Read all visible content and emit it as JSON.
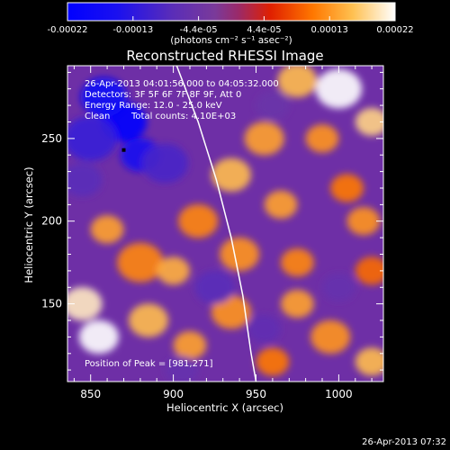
{
  "chart_data": {
    "type": "heatmap",
    "title": "Reconstructed RHESSI Image",
    "xlabel": "Heliocentric X (arcsec)",
    "ylabel": "Heliocentric Y (arcsec)",
    "xlim": [
      836,
      1027
    ],
    "ylim": [
      103,
      294
    ],
    "x_ticks": [
      850,
      900,
      950,
      1000
    ],
    "y_ticks": [
      150,
      200,
      250
    ],
    "colorbar": {
      "tick_labels": [
        "-0.00022",
        "-0.00013",
        "-4.4e-05",
        "4.4e-05",
        "0.00013",
        "0.00022"
      ],
      "units_label": "(photons cm⁻² s⁻¹ asec⁻²)",
      "range": [
        -0.00022,
        0.00022
      ]
    },
    "annotations": [
      "26-Apr-2013 04:01:56.000 to 04:05:32.000",
      "Detectors: 3F 5F 6F 7F 8F 9F, Att 0",
      "Energy Range: 12.0 - 25.0 keV",
      "Clean",
      "Total counts: 4.10E+03"
    ],
    "peak_label": "Position of Peak = [981,271]",
    "peak": [
      981,
      271
    ],
    "min_marker": [
      870,
      243
    ],
    "limb_points": [
      [
        902,
        294
      ],
      [
        915,
        260
      ],
      [
        926,
        225
      ],
      [
        935,
        190
      ],
      [
        942,
        155
      ],
      [
        947,
        120
      ],
      [
        950,
        103
      ]
    ],
    "blobs": [
      {
        "x": 870,
        "y": 260,
        "v": -0.00022,
        "s": 14
      },
      {
        "x": 858,
        "y": 275,
        "v": -0.00018,
        "s": 14
      },
      {
        "x": 880,
        "y": 240,
        "v": -0.00016,
        "s": 12
      },
      {
        "x": 850,
        "y": 250,
        "v": -0.00012,
        "s": 16
      },
      {
        "x": 895,
        "y": 235,
        "v": -0.0001,
        "s": 14
      },
      {
        "x": 845,
        "y": 225,
        "v": -8e-05,
        "s": 12
      },
      {
        "x": 1000,
        "y": 280,
        "v": 0.00022,
        "s": 14
      },
      {
        "x": 1020,
        "y": 260,
        "v": 0.00018,
        "s": 10
      },
      {
        "x": 975,
        "y": 285,
        "v": 0.00016,
        "s": 12
      },
      {
        "x": 990,
        "y": 250,
        "v": 0.00013,
        "s": 10
      },
      {
        "x": 955,
        "y": 250,
        "v": 0.00014,
        "s": 12
      },
      {
        "x": 935,
        "y": 228,
        "v": 0.00016,
        "s": 12
      },
      {
        "x": 965,
        "y": 210,
        "v": 0.00014,
        "s": 10
      },
      {
        "x": 915,
        "y": 200,
        "v": 0.00012,
        "s": 12
      },
      {
        "x": 1015,
        "y": 200,
        "v": 0.00013,
        "s": 10
      },
      {
        "x": 1005,
        "y": 220,
        "v": 0.00011,
        "s": 10
      },
      {
        "x": 880,
        "y": 175,
        "v": 0.00012,
        "s": 14
      },
      {
        "x": 860,
        "y": 195,
        "v": 0.00014,
        "s": 10
      },
      {
        "x": 900,
        "y": 170,
        "v": 0.00015,
        "s": 10
      },
      {
        "x": 940,
        "y": 180,
        "v": 0.00013,
        "s": 12
      },
      {
        "x": 975,
        "y": 175,
        "v": 0.00012,
        "s": 10
      },
      {
        "x": 1020,
        "y": 170,
        "v": 0.0001,
        "s": 10
      },
      {
        "x": 845,
        "y": 150,
        "v": 0.0002,
        "s": 12
      },
      {
        "x": 855,
        "y": 130,
        "v": 0.00022,
        "s": 12
      },
      {
        "x": 885,
        "y": 140,
        "v": 0.00016,
        "s": 12
      },
      {
        "x": 910,
        "y": 125,
        "v": 0.00014,
        "s": 10
      },
      {
        "x": 935,
        "y": 145,
        "v": 0.00013,
        "s": 12
      },
      {
        "x": 975,
        "y": 150,
        "v": 0.00014,
        "s": 10
      },
      {
        "x": 995,
        "y": 130,
        "v": 0.00013,
        "s": 12
      },
      {
        "x": 1020,
        "y": 115,
        "v": 0.00016,
        "s": 10
      },
      {
        "x": 960,
        "y": 115,
        "v": 0.00011,
        "s": 10
      },
      {
        "x": 925,
        "y": 160,
        "v": -8e-05,
        "s": 12
      },
      {
        "x": 955,
        "y": 135,
        "v": -7e-05,
        "s": 10
      },
      {
        "x": 1000,
        "y": 160,
        "v": -6e-05,
        "s": 10
      },
      {
        "x": 905,
        "y": 110,
        "v": -6e-05,
        "s": 10
      },
      {
        "x": 960,
        "y": 270,
        "v": -5e-05,
        "s": 10
      }
    ]
  },
  "footer": {
    "timestamp": "26-Apr-2013 07:32"
  }
}
